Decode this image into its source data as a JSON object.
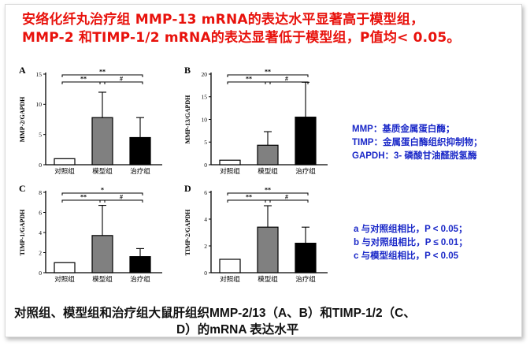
{
  "headline": {
    "line1": "安络化纤丸治疗组 MMP-13 mRNA的表达水平显著高于模型组，",
    "line2": "MMP-2 和TIMP-1/2 mRNA的表达显著低于模型组，P值均< 0.05。"
  },
  "chart_data": [
    {
      "type": "bar",
      "panel_label": "A",
      "ylabel": "MMP-2/GAPDH",
      "categories": [
        "对照组",
        "模型组",
        "治疗组"
      ],
      "values": [
        1.0,
        7.8,
        4.5
      ],
      "errors": [
        0,
        4.2,
        3.3
      ],
      "ylim": [
        0,
        15
      ],
      "yticks": [
        0,
        5,
        10,
        15
      ],
      "bar_colors": [
        "#ffffff",
        "#808080",
        "#000000"
      ],
      "sig": [
        {
          "from": 0,
          "to": 2,
          "label": "**"
        },
        {
          "from": 0,
          "to": 1,
          "label": "**"
        },
        {
          "from": 1,
          "to": 2,
          "label": "#"
        }
      ]
    },
    {
      "type": "bar",
      "panel_label": "B",
      "ylabel": "MMP-13/GAPDH",
      "categories": [
        "对照组",
        "模型组",
        "治疗组"
      ],
      "values": [
        1.0,
        4.3,
        10.5
      ],
      "errors": [
        0,
        3.0,
        7.7
      ],
      "ylim": [
        0,
        20
      ],
      "yticks": [
        0,
        5,
        10,
        15,
        20
      ],
      "bar_colors": [
        "#ffffff",
        "#808080",
        "#000000"
      ],
      "sig": [
        {
          "from": 0,
          "to": 2,
          "label": "**"
        },
        {
          "from": 0,
          "to": 1,
          "label": "**"
        },
        {
          "from": 1,
          "to": 2,
          "label": "#"
        }
      ]
    },
    {
      "type": "bar",
      "panel_label": "C",
      "ylabel": "TIMP-1/GAPDH",
      "categories": [
        "对照组",
        "模型组",
        "治疗组"
      ],
      "values": [
        1.0,
        3.7,
        1.6
      ],
      "errors": [
        0,
        3.0,
        0.8
      ],
      "ylim": [
        0,
        8
      ],
      "yticks": [
        0,
        2,
        4,
        6,
        8
      ],
      "bar_colors": [
        "#ffffff",
        "#808080",
        "#000000"
      ],
      "sig": [
        {
          "from": 0,
          "to": 2,
          "label": "*"
        },
        {
          "from": 0,
          "to": 1,
          "label": "**"
        },
        {
          "from": 1,
          "to": 2,
          "label": "#"
        }
      ]
    },
    {
      "type": "bar",
      "panel_label": "D",
      "ylabel": "TIMP-2/GAPDH",
      "categories": [
        "对照组",
        "模型组",
        "治疗组"
      ],
      "values": [
        1.0,
        3.4,
        2.2
      ],
      "errors": [
        0,
        1.6,
        1.2
      ],
      "ylim": [
        0,
        6
      ],
      "yticks": [
        0,
        2,
        4,
        6
      ],
      "bar_colors": [
        "#ffffff",
        "#808080",
        "#000000"
      ],
      "sig": [
        {
          "from": 0,
          "to": 2,
          "label": "**"
        },
        {
          "from": 0,
          "to": 1,
          "label": "**"
        },
        {
          "from": 1,
          "to": 2,
          "label": "#"
        }
      ]
    }
  ],
  "abbreviations": [
    "MMP：基质金属蛋白酶；",
    "TIMP：金属蛋白酶组织抑制物；",
    "GAPDH：3- 磷酸甘油醛脱氢酶"
  ],
  "significance_notes": [
    "a 与对照组相比，P < 0.05；",
    "b 与对照组相比，P ≤ 0.01；",
    "c 与模型组相比，P < 0.05"
  ],
  "caption": {
    "line1": "对照组、模型组和治疗组大鼠肝组织MMP-2/13（A、B）和TIMP-1/2（C、",
    "line2": "D）的mRNA 表达水平"
  },
  "colors": {
    "headline": "#e8120c",
    "notes": "#1a28c8",
    "text": "#111111"
  }
}
